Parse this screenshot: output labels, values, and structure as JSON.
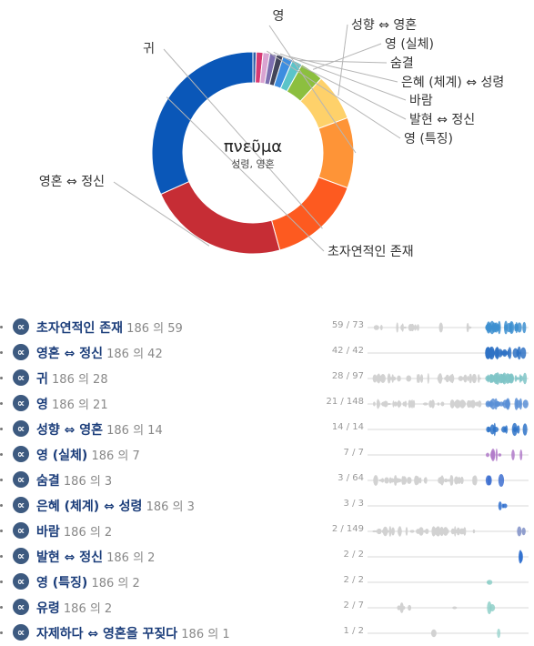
{
  "chart_data": [
    {
      "type": "pie",
      "title": "πνεῦμα",
      "subtitle": "성령, 영혼",
      "categories": [
        "초자연적인 존재",
        "영혼 ⇔ 정신",
        "귀",
        "영",
        "성향 ⇔ 영혼",
        "영 (실체)",
        "숨결",
        "은혜 (체계) ⇔ 성령",
        "바람",
        "발현 ⇔ 정신",
        "영 (특징)",
        "유령",
        "자제하다 ⇔ 영혼을 꾸짖다"
      ],
      "values": [
        59,
        42,
        28,
        21,
        14,
        7,
        3,
        3,
        2,
        2,
        2,
        2,
        1
      ],
      "total": 186,
      "colors": [
        "#0a57b8",
        "#c62d35",
        "#fd5a20",
        "#fe9437",
        "#fed16a",
        "#8cbf3f",
        "#5bc4c9",
        "#3d8de0",
        "#41445a",
        "#7c6fb0",
        "#d9a3d1",
        "#d63a74",
        "#2c5fa8"
      ],
      "legend": "none"
    }
  ],
  "pie_labels": [
    "초자연적인 존재",
    "영혼 ⇔ 정신",
    "귀",
    "영",
    "성향 ⇔ 영혼",
    "영 (실체)",
    "숨결",
    "은혜 (체계) ⇔ 성령",
    "바람",
    "발현 ⇔ 정신",
    "영 (특징)"
  ],
  "rows": [
    {
      "name": "초자연적인 존재",
      "count": "186 의 59",
      "ratio": "59 / 73",
      "color": "#3d8fd0"
    },
    {
      "name": "영혼 ⇔ 정신",
      "count": "186 의 42",
      "ratio": "42 / 42",
      "color": "#2f72c4"
    },
    {
      "name": "귀",
      "count": "186 의 28",
      "ratio": "28 / 97",
      "color": "#7fc4c7"
    },
    {
      "name": "영",
      "count": "186 의 21",
      "ratio": "21 / 148",
      "color": "#5b8fd6"
    },
    {
      "name": "성향 ⇔ 영혼",
      "count": "186 의 14",
      "ratio": "14 / 14",
      "color": "#2e73c8"
    },
    {
      "name": "영 (실체)",
      "count": "186 의 7",
      "ratio": "7 / 7",
      "color": "#b07ac9"
    },
    {
      "name": "숨결",
      "count": "186 의 3",
      "ratio": "3 / 64",
      "color": "#3d6fd0"
    },
    {
      "name": "은혜 (체계) ⇔ 성령",
      "count": "186 의 3",
      "ratio": "3 / 3",
      "color": "#2e6fcf"
    },
    {
      "name": "바람",
      "count": "186 의 2",
      "ratio": "2 / 149",
      "color": "#7f8fc7"
    },
    {
      "name": "발현 ⇔ 정신",
      "count": "186 의 2",
      "ratio": "2 / 2",
      "color": "#2e6fcf"
    },
    {
      "name": "영 (특징)",
      "count": "186 의 2",
      "ratio": "2 / 2",
      "color": "#8fd0c9"
    },
    {
      "name": "유령",
      "count": "186 의 2",
      "ratio": "2 / 7",
      "color": "#8fd0c9"
    },
    {
      "name": "자제하다 ⇔ 영혼을 꾸짖다",
      "count": "186 의 1",
      "ratio": "1 / 2",
      "color": "#9fd6d0"
    }
  ],
  "alpha_icon": "∝"
}
